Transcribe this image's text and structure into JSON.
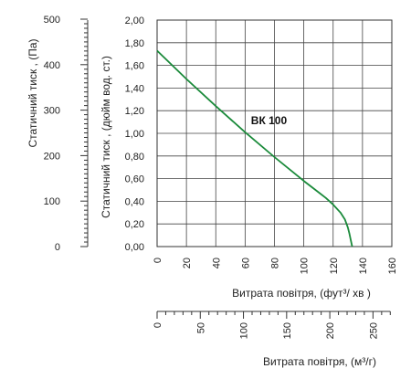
{
  "chart_data": {
    "type": "line",
    "series": [
      {
        "name": "ВК 100",
        "color": "#1a8a3a",
        "x": [
          0,
          20,
          40,
          60,
          80,
          100,
          110,
          115,
          120,
          125,
          128,
          130,
          131,
          132,
          133
        ],
        "y": [
          1.73,
          1.48,
          1.24,
          1.01,
          0.79,
          0.58,
          0.48,
          0.43,
          0.37,
          0.3,
          0.24,
          0.17,
          0.12,
          0.06,
          0.0
        ]
      }
    ],
    "x_primary": {
      "label": "Витрата повітря, (фут³/ хв )",
      "ticks": [
        0,
        20,
        40,
        60,
        80,
        100,
        120,
        140,
        160
      ],
      "range": [
        0,
        160
      ]
    },
    "x_secondary": {
      "label": "Витрата повітря, (м³/г)",
      "ticks": [
        0,
        50,
        100,
        150,
        200,
        250
      ],
      "range": [
        0,
        271.8
      ]
    },
    "y_primary": {
      "label": "Статичний тиск , (дюйм вод. ст.)",
      "ticks": [
        "0,00",
        "0,20",
        "0,40",
        "0,60",
        "0,80",
        "1,00",
        "1,20",
        "1,40",
        "1,60",
        "1,80",
        "2,00"
      ],
      "range": [
        0,
        2.0
      ]
    },
    "y_secondary": {
      "label": "Статичний тиск , (Па)",
      "ticks": [
        0,
        100,
        200,
        300,
        400,
        500
      ],
      "range": [
        0,
        498
      ]
    },
    "grid": true
  }
}
